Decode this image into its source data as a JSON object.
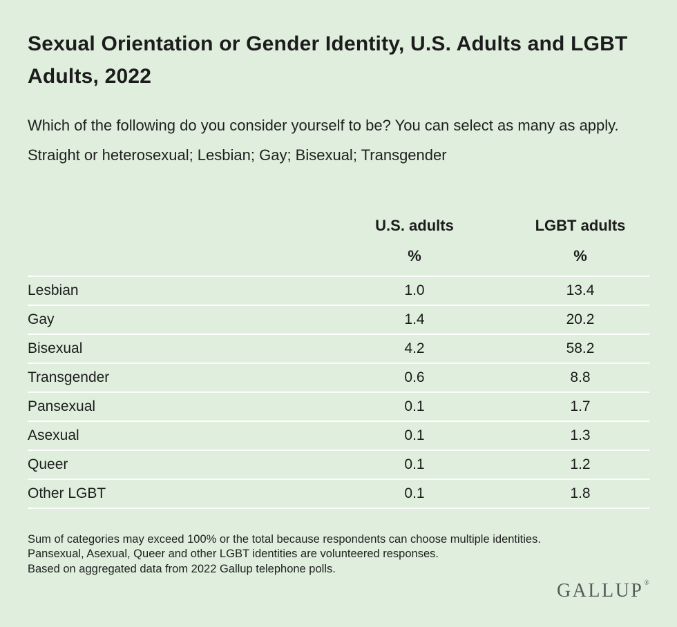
{
  "page": {
    "title": "Sexual Orientation or Gender Identity, U.S. Adults and LGBT Adults, 2022",
    "subtitle": "Which of the following do you consider yourself to be? You can select as many as apply. Straight or heterosexual; Lesbian; Gay; Bisexual; Transgender",
    "footnotes": [
      "Sum of categories may exceed 100% or the total because respondents can choose multiple identities.",
      "Pansexual, Asexual, Queer and other LGBT identities are volunteered responses.",
      "Based on aggregated data from 2022 Gallup telephone polls."
    ],
    "brand": "GALLUP",
    "brand_mark": "®"
  },
  "table": {
    "col_headers": [
      "U.S. adults",
      "LGBT adults"
    ],
    "unit_row": [
      "%",
      "%"
    ],
    "rows": [
      {
        "label": "Lesbian",
        "us": "1.0",
        "lgbt": "13.4"
      },
      {
        "label": "Gay",
        "us": "1.4",
        "lgbt": "20.2"
      },
      {
        "label": "Bisexual",
        "us": "4.2",
        "lgbt": "58.2"
      },
      {
        "label": "Transgender",
        "us": "0.6",
        "lgbt": "8.8"
      },
      {
        "label": "Pansexual",
        "us": "0.1",
        "lgbt": "1.7"
      },
      {
        "label": "Asexual",
        "us": "0.1",
        "lgbt": "1.3"
      },
      {
        "label": "Queer",
        "us": "0.1",
        "lgbt": "1.2"
      },
      {
        "label": "Other LGBT",
        "us": "0.1",
        "lgbt": "1.8"
      }
    ]
  },
  "chart_data": {
    "type": "table",
    "title": "Sexual Orientation or Gender Identity, U.S. Adults and LGBT Adults, 2022",
    "subtitle": "Which of the following do you consider yourself to be? You can select as many as apply. Straight or heterosexual; Lesbian; Gay; Bisexual; Transgender",
    "categories": [
      "Lesbian",
      "Gay",
      "Bisexual",
      "Transgender",
      "Pansexual",
      "Asexual",
      "Queer",
      "Other LGBT"
    ],
    "series": [
      {
        "name": "U.S. adults",
        "unit": "%",
        "values": [
          1.0,
          1.4,
          4.2,
          0.6,
          0.1,
          0.1,
          0.1,
          0.1
        ]
      },
      {
        "name": "LGBT adults",
        "unit": "%",
        "values": [
          13.4,
          20.2,
          58.2,
          8.8,
          1.7,
          1.3,
          1.2,
          1.8
        ]
      }
    ],
    "footnotes": [
      "Sum of categories may exceed 100% or the total because respondents can choose multiple identities.",
      "Pansexual, Asexual, Queer and other LGBT identities are volunteered responses.",
      "Based on aggregated data from 2022 Gallup telephone polls."
    ],
    "source": "GALLUP"
  },
  "colors": {
    "background": "#dfeedd",
    "text": "#1c1c1c",
    "row_divider": "#ffffff",
    "brand": "#575c5d"
  }
}
